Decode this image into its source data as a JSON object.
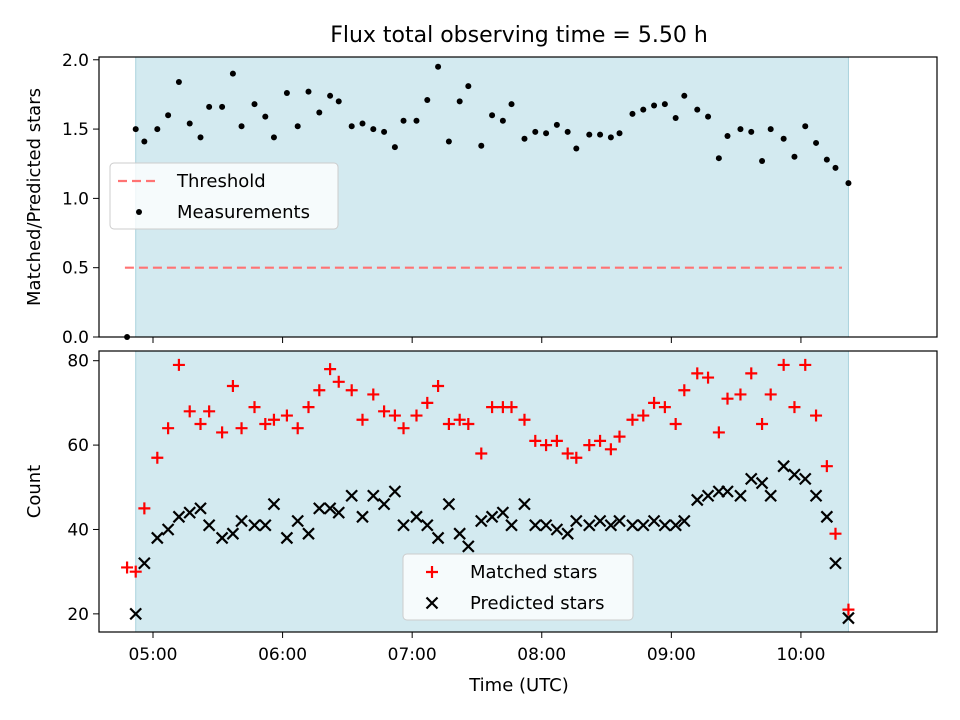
{
  "chart_data": {
    "title": "Flux total observing time = 5.50 h",
    "xlabel": "Time (UTC)",
    "x_ticks": [
      "05:00",
      "06:00",
      "07:00",
      "08:00",
      "09:00",
      "10:00"
    ],
    "x_tick_minutes": [
      300,
      360,
      420,
      480,
      540,
      600
    ],
    "xlim_minutes": [
      275,
      663
    ],
    "shaded_span_minutes": [
      292,
      622
    ],
    "shade_color": "#d3eaf0",
    "panels": [
      {
        "type": "scatter",
        "ylabel": "Matched/Predicted stars",
        "ylim": [
          0,
          2.02
        ],
        "y_ticks": [
          "0.0",
          "0.5",
          "1.0",
          "1.5",
          "2.0"
        ],
        "y_tick_values": [
          0,
          0.5,
          1.0,
          1.5,
          2.0
        ],
        "legend": {
          "placement": "center-left",
          "entries": [
            {
              "label": "Threshold",
              "series": "threshold"
            },
            {
              "label": "Measurements",
              "series": "measurements"
            }
          ]
        },
        "series": [
          {
            "name": "Threshold",
            "key": "threshold",
            "style": "dashed-line",
            "color": "#ff7373",
            "x": [
              287,
              619
            ],
            "y": [
              0.5,
              0.5
            ]
          },
          {
            "name": "Measurements",
            "key": "measurements",
            "style": "dot",
            "color": "#000000",
            "x": [
              288,
              292,
              296,
              302,
              307,
              312,
              317,
              322,
              326,
              332,
              337,
              341,
              347,
              352,
              356,
              362,
              367,
              372,
              377,
              382,
              386,
              392,
              397,
              402,
              407,
              412,
              416,
              422,
              427,
              432,
              437,
              442,
              446,
              452,
              457,
              462,
              466,
              472,
              477,
              482,
              487,
              492,
              496,
              502,
              507,
              512,
              516,
              522,
              527,
              532,
              537,
              542,
              546,
              552,
              557,
              562,
              566,
              572,
              577,
              582,
              586,
              592,
              597,
              602,
              607,
              612,
              616,
              622
            ],
            "y": [
              0.0,
              1.5,
              1.41,
              1.5,
              1.6,
              1.84,
              1.54,
              1.44,
              1.66,
              1.66,
              1.9,
              1.52,
              1.68,
              1.59,
              1.44,
              1.76,
              1.52,
              1.77,
              1.62,
              1.74,
              1.7,
              1.52,
              1.54,
              1.5,
              1.48,
              1.37,
              1.56,
              1.56,
              1.71,
              1.95,
              1.41,
              1.7,
              1.81,
              1.38,
              1.6,
              1.56,
              1.68,
              1.43,
              1.48,
              1.47,
              1.53,
              1.48,
              1.36,
              1.46,
              1.46,
              1.44,
              1.47,
              1.61,
              1.64,
              1.67,
              1.68,
              1.58,
              1.74,
              1.64,
              1.59,
              1.29,
              1.45,
              1.5,
              1.48,
              1.27,
              1.5,
              1.43,
              1.3,
              1.52,
              1.4,
              1.28,
              1.22,
              1.11
            ]
          }
        ]
      },
      {
        "type": "scatter",
        "ylabel": "Count",
        "ylim": [
          15.7,
          82.3
        ],
        "y_ticks": [
          "20",
          "40",
          "60",
          "80"
        ],
        "y_tick_values": [
          20,
          40,
          60,
          80
        ],
        "legend": {
          "placement": "bottom-center",
          "entries": [
            {
              "label": "Matched stars",
              "series": "matched"
            },
            {
              "label": "Predicted stars",
              "series": "predicted"
            }
          ]
        },
        "series": [
          {
            "name": "Matched stars",
            "key": "matched",
            "style": "plus",
            "color": "#ff0000",
            "x": [
              288,
              292,
              296,
              302,
              307,
              312,
              317,
              322,
              326,
              332,
              337,
              341,
              347,
              352,
              356,
              362,
              367,
              372,
              377,
              382,
              386,
              392,
              397,
              402,
              407,
              412,
              416,
              422,
              427,
              432,
              437,
              442,
              446,
              452,
              457,
              462,
              466,
              472,
              477,
              482,
              487,
              492,
              496,
              502,
              507,
              512,
              516,
              522,
              527,
              532,
              537,
              542,
              546,
              552,
              557,
              562,
              566,
              572,
              577,
              582,
              586,
              592,
              597,
              602,
              607,
              612,
              616,
              622
            ],
            "y": [
              31,
              30,
              45,
              57,
              64,
              79,
              68,
              65,
              68,
              63,
              74,
              64,
              69,
              65,
              66,
              67,
              64,
              69,
              73,
              78,
              75,
              73,
              66,
              72,
              68,
              67,
              64,
              67,
              70,
              74,
              65,
              66,
              65,
              58,
              69,
              69,
              69,
              66,
              61,
              60,
              61,
              58,
              57,
              60,
              61,
              59,
              62,
              66,
              67,
              70,
              69,
              65,
              73,
              77,
              76,
              63,
              71,
              72,
              77,
              65,
              72,
              79,
              69,
              79,
              67,
              55,
              39,
              21
            ]
          },
          {
            "name": "Predicted stars",
            "key": "predicted",
            "style": "x",
            "color": "#000000",
            "x": [
              292,
              296,
              302,
              307,
              312,
              317,
              322,
              326,
              332,
              337,
              341,
              347,
              352,
              356,
              362,
              367,
              372,
              377,
              382,
              386,
              392,
              397,
              402,
              407,
              412,
              416,
              422,
              427,
              432,
              437,
              442,
              446,
              452,
              457,
              462,
              466,
              472,
              477,
              482,
              487,
              492,
              496,
              502,
              507,
              512,
              516,
              522,
              527,
              532,
              537,
              542,
              546,
              552,
              557,
              562,
              566,
              572,
              577,
              582,
              586,
              592,
              597,
              602,
              607,
              612,
              616,
              622
            ],
            "y": [
              20,
              32,
              38,
              40,
              43,
              44,
              45,
              41,
              38,
              39,
              42,
              41,
              41,
              46,
              38,
              42,
              39,
              45,
              45,
              44,
              48,
              43,
              48,
              46,
              49,
              41,
              43,
              41,
              38,
              46,
              39,
              36,
              42,
              43,
              44,
              41,
              46,
              41,
              41,
              40,
              39,
              42,
              41,
              42,
              41,
              42,
              41,
              41,
              42,
              41,
              41,
              42,
              47,
              48,
              49,
              49,
              48,
              52,
              51,
              48,
              55,
              53,
              52,
              48,
              43,
              32,
              19
            ]
          }
        ]
      }
    ]
  }
}
